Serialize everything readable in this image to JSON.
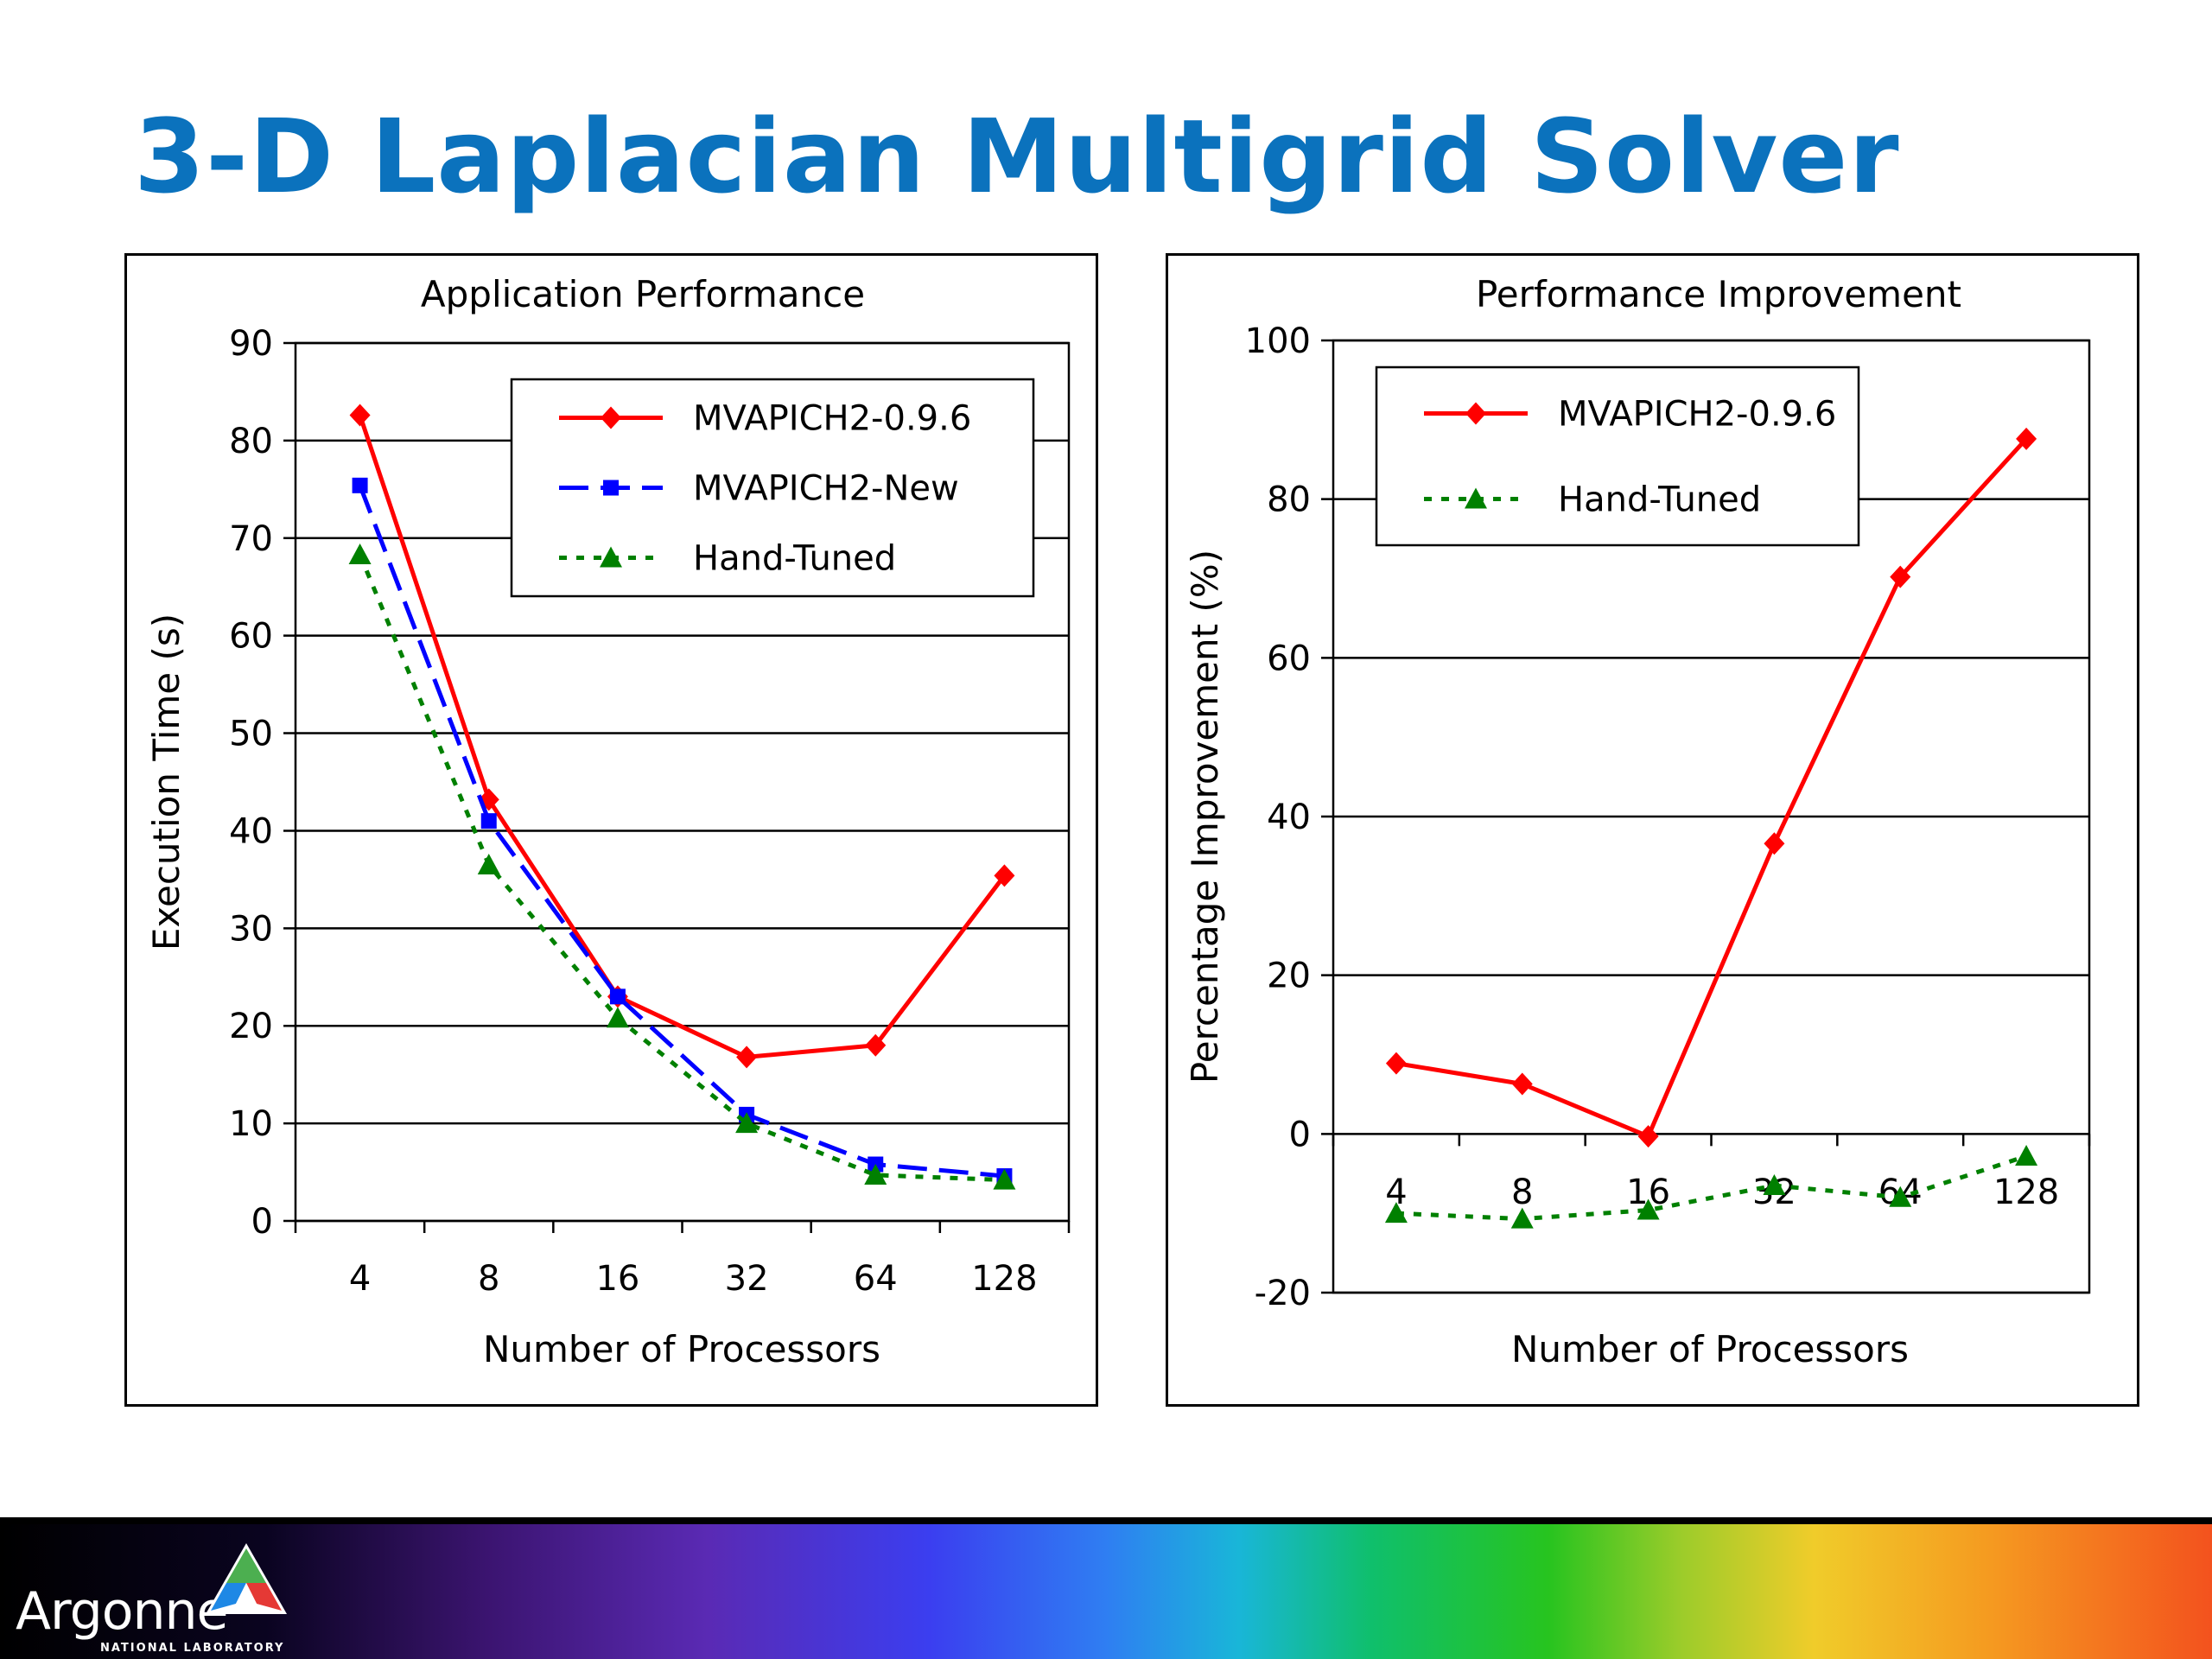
{
  "slide": {
    "title": "3-D Laplacian Multigrid Solver"
  },
  "logo": {
    "name": "Argonne",
    "subtitle": "NATIONAL LABORATORY"
  },
  "colors": {
    "title": "#0b72bd",
    "red": "#ff0000",
    "blue": "#0000ff",
    "green": "#008000"
  },
  "chart_data": [
    {
      "type": "line",
      "title": "Application Performance",
      "xlabel": "Number of Processors",
      "ylabel": "Execution Time (s)",
      "categories": [
        "4",
        "8",
        "16",
        "32",
        "64",
        "128"
      ],
      "ylim": [
        0,
        90
      ],
      "yticks": [
        "0",
        "10",
        "20",
        "30",
        "40",
        "50",
        "60",
        "70",
        "80",
        "90"
      ],
      "grid": true,
      "legend_position": "top-right",
      "series": [
        {
          "name": "MVAPICH2-0.9.6",
          "color": "#ff0000",
          "marker": "diamond",
          "dash": "solid",
          "values": [
            82.6,
            43.2,
            23,
            16.8,
            18,
            35.4
          ]
        },
        {
          "name": "MVAPICH2-New",
          "color": "#0000ff",
          "marker": "square",
          "dash": "long-dash",
          "values": [
            75.4,
            41,
            23,
            10.9,
            5.8,
            4.6
          ]
        },
        {
          "name": "Hand-Tuned",
          "color": "#008000",
          "marker": "triangle",
          "dash": "dotted",
          "values": [
            68.3,
            36.5,
            20.8,
            10,
            4.7,
            4.2
          ]
        }
      ]
    },
    {
      "type": "line",
      "title": "Performance Improvement",
      "xlabel": "Number of Processors",
      "ylabel": "Percentage Improvement (%)",
      "categories": [
        "4",
        "8",
        "16",
        "32",
        "64",
        "128"
      ],
      "ylim": [
        -20,
        100
      ],
      "yticks": [
        "-20",
        "0",
        "20",
        "40",
        "60",
        "80",
        "100"
      ],
      "grid": true,
      "legend_position": "top-left",
      "series": [
        {
          "name": "MVAPICH2-0.9.6",
          "color": "#ff0000",
          "marker": "diamond",
          "dash": "solid",
          "values": [
            8.9,
            6.3,
            -0.3,
            36.6,
            70.2,
            87.6
          ]
        },
        {
          "name": "Hand-Tuned",
          "color": "#008000",
          "marker": "triangle",
          "dash": "dotted",
          "values": [
            -10,
            -10.7,
            -9.6,
            -6.5,
            -8,
            -2.8
          ]
        }
      ]
    }
  ]
}
